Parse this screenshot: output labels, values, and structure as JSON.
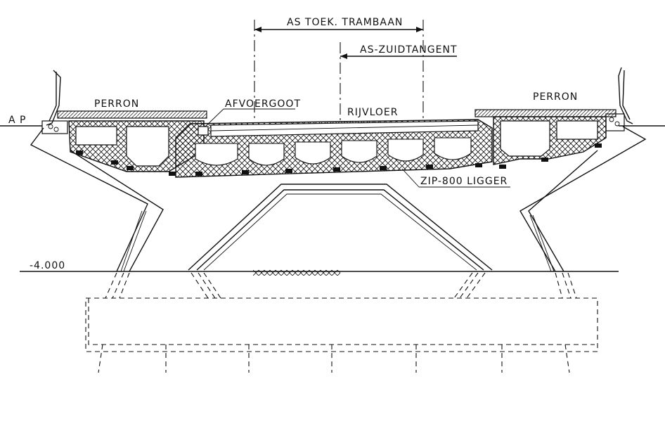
{
  "labels": {
    "as_toek_trambaan": "AS TOEK. TRAMBAAN",
    "as_zuidtangent": "AS-ZUIDTANGENT",
    "perron_left": "PERRON",
    "perron_right": "PERRON",
    "afvoergoot": "AFVOERGOOT",
    "rijvloer": "RIJVLOER",
    "zip_ligger": "ZIP-800 LIGGER",
    "ap": "A P",
    "level": "-4.000"
  }
}
